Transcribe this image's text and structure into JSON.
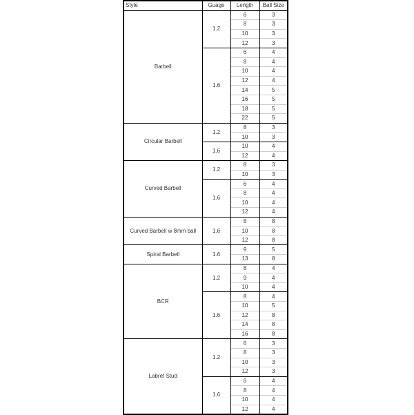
{
  "headers": {
    "style": "Style",
    "gauge": "Guage",
    "length": "Length",
    "ball_size": "Ball Size"
  },
  "groups": [
    {
      "style": "Barbell",
      "gauges": [
        {
          "gauge": "1.2",
          "rows": [
            [
              "6",
              "3"
            ],
            [
              "8",
              "3"
            ],
            [
              "10",
              "3"
            ],
            [
              "12",
              "3"
            ]
          ]
        },
        {
          "gauge": "1.6",
          "rows": [
            [
              "6",
              "4"
            ],
            [
              "8",
              "4"
            ],
            [
              "10",
              "4"
            ],
            [
              "12",
              "4"
            ],
            [
              "14",
              "5"
            ],
            [
              "16",
              "5"
            ],
            [
              "18",
              "5"
            ],
            [
              "22",
              "5"
            ]
          ]
        }
      ]
    },
    {
      "style": "Circular Barbell",
      "gauges": [
        {
          "gauge": "1.2",
          "rows": [
            [
              "8",
              "3"
            ],
            [
              "10",
              "3"
            ]
          ]
        },
        {
          "gauge": "1.6",
          "rows": [
            [
              "10",
              "4"
            ],
            [
              "12",
              "4"
            ]
          ]
        }
      ]
    },
    {
      "style": "Curved Barbell",
      "gauges": [
        {
          "gauge": "1.2",
          "rows": [
            [
              "8",
              "3"
            ],
            [
              "10",
              "3"
            ]
          ]
        },
        {
          "gauge": "1.6",
          "rows": [
            [
              "6",
              "4"
            ],
            [
              "8",
              "4"
            ],
            [
              "10",
              "4"
            ],
            [
              "12",
              "4"
            ]
          ]
        }
      ]
    },
    {
      "style": "Curved Barbell w 8mm ball",
      "gauges": [
        {
          "gauge": "1.6",
          "rows": [
            [
              "8",
              "8"
            ],
            [
              "10",
              "8"
            ],
            [
              "12",
              "8"
            ]
          ]
        }
      ]
    },
    {
      "style": "Spiral Barbell",
      "gauges": [
        {
          "gauge": "1.6",
          "rows": [
            [
              "9",
              "5"
            ],
            [
              "13",
              "8"
            ]
          ]
        }
      ]
    },
    {
      "style": "BCR",
      "gauges": [
        {
          "gauge": "1.2",
          "rows": [
            [
              "8",
              "4"
            ],
            [
              "9",
              "4"
            ],
            [
              "10",
              "4"
            ]
          ]
        },
        {
          "gauge": "1.6",
          "rows": [
            [
              "8",
              "4"
            ],
            [
              "10",
              "5"
            ],
            [
              "12",
              "8"
            ],
            [
              "14",
              "8"
            ],
            [
              "16",
              "8"
            ]
          ]
        }
      ]
    },
    {
      "style": "Labret Stud",
      "gauges": [
        {
          "gauge": "1.2",
          "rows": [
            [
              "6",
              "3"
            ],
            [
              "8",
              "3"
            ],
            [
              "10",
              "3"
            ],
            [
              "12",
              "3"
            ]
          ]
        },
        {
          "gauge": "1.6",
          "rows": [
            [
              "6",
              "4"
            ],
            [
              "8",
              "4"
            ],
            [
              "10",
              "4"
            ],
            [
              "12",
              "4"
            ]
          ]
        }
      ]
    }
  ]
}
